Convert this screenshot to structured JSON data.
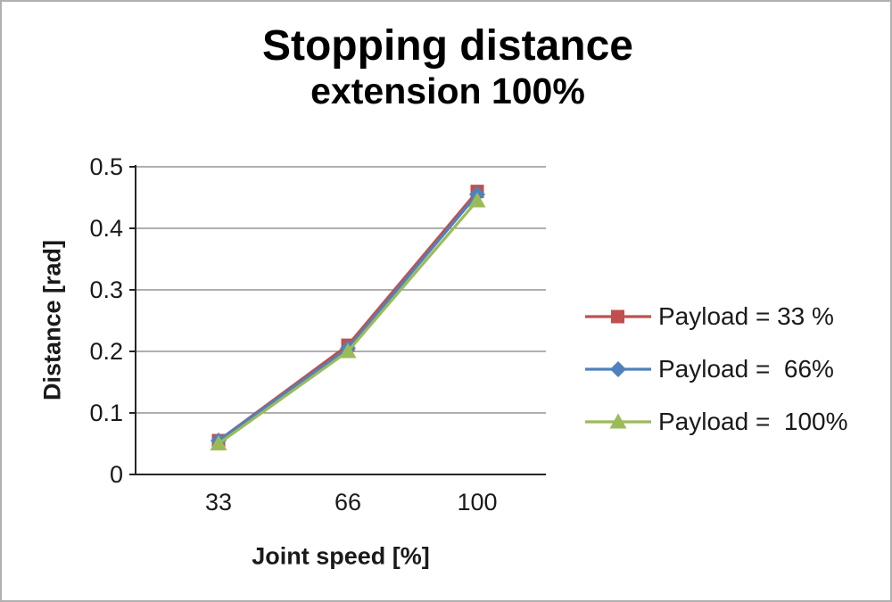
{
  "chart_data": {
    "type": "line",
    "title": "Stopping distance",
    "subtitle": "extension 100%",
    "xlabel": "Joint speed [%]",
    "ylabel": "Distance [rad]",
    "categories": [
      "33",
      "66",
      "100"
    ],
    "ylim": [
      0,
      0.5
    ],
    "ytick_labels": [
      "0",
      "0.1",
      "0.2",
      "0.3",
      "0.4",
      "0.5"
    ],
    "ytick_values": [
      0,
      0.1,
      0.2,
      0.3,
      0.4,
      0.5
    ],
    "grid": true,
    "legend_position": "right",
    "series": [
      {
        "name": "Payload = 33 %",
        "marker": "square",
        "color": "#C0504D",
        "values": [
          0.055,
          0.21,
          0.46
        ]
      },
      {
        "name": "Payload =  66%",
        "marker": "diamond",
        "color": "#4F81BD",
        "values": [
          0.055,
          0.205,
          0.455
        ]
      },
      {
        "name": "Payload =  100%",
        "marker": "triangle",
        "color": "#9BBB59",
        "values": [
          0.05,
          0.2,
          0.445
        ]
      }
    ],
    "colors": {
      "axis": "#262626",
      "gridline": "#7f7f7f",
      "tick_text": "#1a1a1a"
    }
  }
}
